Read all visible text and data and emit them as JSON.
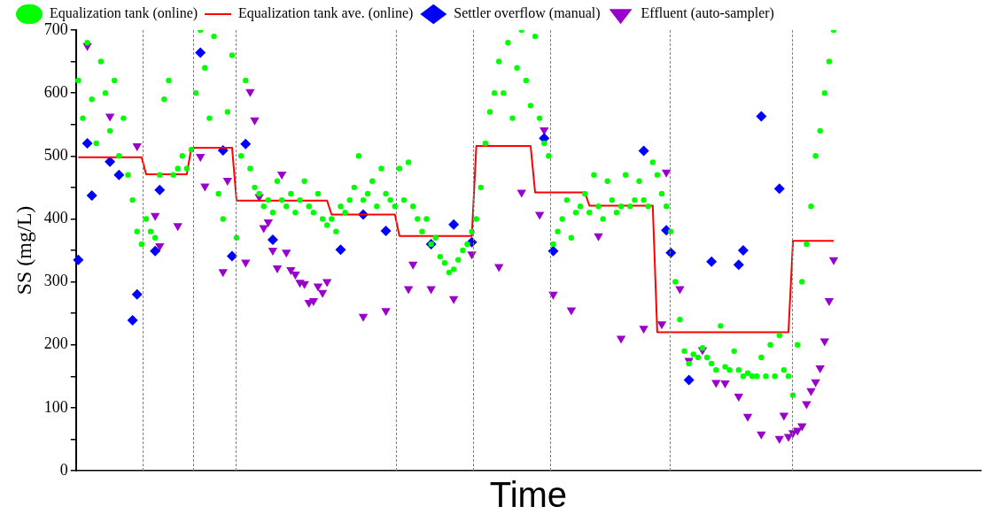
{
  "chart_data": {
    "type": "scatter",
    "xlabel": "Time",
    "ylabel": "SS (mg/L)",
    "ylim": [
      0,
      700
    ],
    "categories": [
      null,
      null,
      null,
      null,
      null,
      null,
      null,
      null,
      null,
      null,
      null,
      null,
      null,
      null,
      null,
      null,
      null,
      null,
      null,
      null,
      null,
      null,
      null,
      null,
      null,
      null,
      null,
      null,
      null,
      null,
      null,
      null,
      null,
      null,
      null,
      null,
      null,
      null,
      null,
      null,
      null,
      null,
      null,
      null,
      null,
      null,
      null,
      null,
      null,
      null,
      null,
      null,
      null,
      null,
      null,
      null,
      null,
      null,
      null,
      null,
      null,
      null,
      null,
      null,
      null,
      null,
      null,
      null,
      null,
      null,
      null,
      null,
      null,
      null,
      null,
      null,
      null,
      null,
      null,
      null,
      null,
      null,
      null,
      null,
      null,
      null,
      null,
      null,
      null,
      null,
      null,
      null,
      null,
      null,
      null,
      null,
      null,
      null,
      null,
      null,
      null,
      null,
      null,
      null,
      null,
      null,
      null,
      null,
      null,
      null,
      null,
      null,
      null,
      null,
      null,
      null,
      null,
      null,
      null,
      null,
      null,
      null,
      null,
      null,
      null,
      null,
      null,
      null,
      null,
      null,
      null,
      null,
      null,
      null,
      null,
      null,
      null,
      null,
      null,
      null,
      null,
      null,
      null,
      null,
      null,
      null,
      null,
      null,
      null,
      null,
      null,
      null,
      null,
      null,
      null,
      null,
      null,
      null,
      null,
      null,
      null,
      null,
      null,
      null,
      null,
      null,
      null,
      null,
      null,
      null,
      null,
      null,
      null,
      null,
      null,
      null,
      null,
      null,
      null,
      null,
      null,
      null,
      null,
      null,
      null,
      null,
      null,
      null,
      null,
      null,
      null,
      null,
      null,
      null,
      null,
      null,
      null,
      null,
      null,
      null
    ],
    "yticks": [
      0,
      {
        "value": 50,
        "label": null
      },
      100,
      {
        "value": 150,
        "label": null
      },
      200,
      {
        "value": 250,
        "label": null
      },
      300,
      {
        "value": 350,
        "label": null
      },
      400,
      {
        "value": 450,
        "label": null
      },
      500,
      {
        "value": 550,
        "label": null
      },
      600,
      {
        "value": 650,
        "label": null
      },
      700
    ],
    "tick_labels": "y",
    "grid": false,
    "legend": "top",
    "series": [
      {
        "name": "Equalization tank (online)",
        "type": "scatter",
        "marker": "circle",
        "color": "#00ff00",
        "values": [
          620,
          560,
          680,
          590,
          520,
          650,
          600,
          540,
          620,
          500,
          560,
          470,
          430,
          380,
          360,
          400,
          380,
          370,
          470,
          590,
          620,
          470,
          480,
          500,
          480,
          510,
          600,
          700,
          640,
          560,
          690,
          440,
          400,
          570,
          660,
          370,
          500,
          620,
          480,
          450,
          440,
          420,
          430,
          410,
          460,
          430,
          420,
          440,
          410,
          430,
          460,
          420,
          410,
          440,
          400,
          390,
          400,
          380,
          420,
          410,
          430,
          450,
          500,
          430,
          440,
          460,
          420,
          480,
          440,
          430,
          420,
          480,
          430,
          490,
          420,
          400,
          380,
          400,
          360,
          370,
          340,
          330,
          315,
          320,
          335,
          350,
          360,
          380,
          400,
          450,
          520,
          570,
          600,
          650,
          600,
          680,
          560,
          640,
          700,
          620,
          580,
          690,
          560,
          520,
          500,
          360,
          380,
          400,
          430,
          370,
          410,
          420,
          440,
          410,
          470,
          420,
          400,
          460,
          430,
          410,
          420,
          470,
          420,
          430,
          460,
          430,
          420,
          490,
          470,
          440,
          420,
          380,
          300,
          240,
          190,
          170,
          185,
          180,
          195,
          180,
          170,
          160,
          230,
          165,
          160,
          190,
          160,
          150,
          155,
          150,
          150,
          180,
          150,
          200,
          150,
          215,
          160,
          150,
          120,
          200,
          300,
          360,
          420,
          500,
          540,
          600,
          650,
          700,
          null,
          null,
          null,
          null,
          null,
          null,
          null,
          null,
          null,
          null,
          null,
          null,
          null,
          null,
          null,
          null,
          null,
          null,
          null,
          null,
          null,
          null,
          null,
          null,
          null,
          null,
          null,
          null,
          null,
          null,
          null,
          null
        ]
      },
      {
        "name": "Equalization tank ave. (online)",
        "type": "step",
        "marker": "none",
        "color": "#ff0000",
        "values": [
          498,
          498,
          498,
          498,
          498,
          498,
          498,
          498,
          498,
          498,
          498,
          498,
          498,
          498,
          498,
          471,
          471,
          471,
          471,
          471,
          471,
          471,
          471,
          471,
          471,
          513,
          513,
          513,
          513,
          513,
          513,
          513,
          513,
          513,
          513,
          429,
          429,
          429,
          429,
          429,
          429,
          429,
          429,
          429,
          429,
          429,
          429,
          429,
          429,
          429,
          429,
          429,
          429,
          429,
          429,
          429,
          407,
          407,
          407,
          407,
          407,
          407,
          407,
          407,
          407,
          407,
          407,
          407,
          407,
          407,
          407,
          373,
          373,
          373,
          373,
          373,
          373,
          373,
          373,
          373,
          373,
          373,
          373,
          373,
          373,
          373,
          373,
          373,
          516,
          516,
          516,
          516,
          516,
          516,
          516,
          516,
          516,
          516,
          516,
          516,
          516,
          442,
          442,
          442,
          442,
          442,
          442,
          442,
          442,
          442,
          442,
          442,
          442,
          421,
          421,
          421,
          421,
          421,
          421,
          421,
          421,
          421,
          421,
          421,
          421,
          421,
          421,
          421,
          220,
          220,
          220,
          220,
          220,
          220,
          220,
          220,
          220,
          220,
          220,
          220,
          220,
          220,
          220,
          220,
          220,
          220,
          220,
          220,
          220,
          220,
          220,
          220,
          220,
          220,
          220,
          220,
          220,
          220,
          365,
          365,
          365,
          365,
          365,
          365,
          365,
          365,
          365,
          365,
          null,
          null,
          null,
          null,
          null,
          null,
          null,
          null,
          null,
          null,
          null,
          null,
          null,
          null,
          null,
          null,
          null,
          null,
          null,
          null,
          null,
          null,
          null,
          null,
          null,
          null,
          null,
          null,
          null,
          null,
          null,
          null
        ]
      },
      {
        "name": "Settler overflow (manual)",
        "type": "scatter",
        "marker": "diamond",
        "color": "#0000ff",
        "values": [
          335,
          null,
          520,
          437,
          null,
          null,
          null,
          491,
          null,
          470,
          null,
          null,
          239,
          280,
          null,
          null,
          null,
          349,
          446,
          null,
          null,
          null,
          null,
          null,
          null,
          null,
          null,
          664,
          null,
          null,
          null,
          null,
          509,
          null,
          341,
          null,
          null,
          519,
          null,
          null,
          null,
          null,
          null,
          367,
          null,
          null,
          null,
          null,
          null,
          null,
          null,
          null,
          null,
          null,
          null,
          null,
          null,
          null,
          351,
          null,
          null,
          null,
          null,
          407,
          null,
          null,
          null,
          null,
          381,
          null,
          null,
          null,
          null,
          null,
          null,
          null,
          null,
          null,
          360,
          null,
          null,
          null,
          null,
          391,
          null,
          null,
          null,
          363,
          null,
          null,
          null,
          null,
          null,
          null,
          null,
          null,
          null,
          null,
          null,
          null,
          null,
          null,
          null,
          528,
          null,
          349,
          null,
          null,
          null,
          null,
          null,
          null,
          null,
          null,
          null,
          null,
          null,
          null,
          null,
          null,
          null,
          null,
          null,
          null,
          null,
          508,
          null,
          null,
          null,
          null,
          382,
          346,
          null,
          null,
          null,
          144,
          null,
          null,
          null,
          null,
          332,
          null,
          null,
          null,
          null,
          null,
          327,
          350,
          null,
          null,
          null,
          563,
          null,
          null,
          null,
          448,
          null,
          null,
          null,
          null,
          null,
          null,
          null,
          null,
          null,
          null,
          null,
          null,
          null,
          null,
          null,
          null,
          null,
          null,
          null,
          null,
          null,
          null,
          null,
          null,
          null,
          null,
          null,
          null,
          null,
          null,
          null,
          null,
          null,
          null,
          null,
          null,
          null,
          null,
          null,
          null,
          null,
          null,
          null,
          null
        ]
      },
      {
        "name": "Effluent (auto-sampler)",
        "type": "scatter",
        "marker": "triangle",
        "color": "#9900cc",
        "values": [
          null,
          null,
          675,
          null,
          null,
          null,
          null,
          563,
          null,
          null,
          null,
          null,
          null,
          516,
          null,
          null,
          null,
          405,
          357,
          null,
          null,
          null,
          389,
          null,
          null,
          null,
          null,
          499,
          452,
          null,
          null,
          null,
          316,
          461,
          null,
          null,
          null,
          331,
          602,
          557,
          435,
          386,
          395,
          350,
          322,
          471,
          347,
          319,
          312,
          299,
          297,
          267,
          270,
          293,
          283,
          300,
          null,
          null,
          null,
          null,
          null,
          null,
          null,
          245,
          null,
          null,
          null,
          null,
          254,
          null,
          null,
          null,
          null,
          289,
          328,
          null,
          null,
          null,
          289,
          null,
          null,
          null,
          null,
          273,
          null,
          null,
          null,
          344,
          null,
          null,
          null,
          null,
          null,
          324,
          null,
          null,
          null,
          null,
          442,
          null,
          null,
          null,
          407,
          541,
          null,
          280,
          null,
          null,
          null,
          255,
          null,
          null,
          null,
          null,
          null,
          373,
          null,
          null,
          null,
          null,
          210,
          null,
          null,
          null,
          null,
          226,
          null,
          null,
          null,
          233,
          474,
          null,
          null,
          289,
          null,
          175,
          null,
          null,
          192,
          null,
          null,
          140,
          null,
          139,
          null,
          null,
          118,
          null,
          86,
          null,
          null,
          58,
          null,
          null,
          null,
          51,
          88,
          54,
          60,
          64,
          71,
          106,
          127,
          141,
          163,
          206,
          270,
          335,
          null,
          null,
          null,
          null,
          null,
          null,
          null,
          null,
          null,
          null,
          null,
          null,
          null,
          null,
          null,
          null,
          null,
          null,
          null,
          null,
          null,
          null,
          null,
          null,
          null,
          null,
          null,
          null,
          null,
          null,
          null,
          null
        ]
      }
    ]
  }
}
